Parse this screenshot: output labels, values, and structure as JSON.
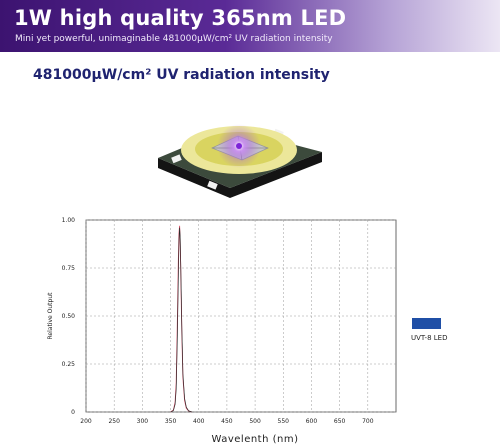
{
  "banner": {
    "title": "1W high quality 365nm LED",
    "subtitle": "Mini yet powerful, unimaginable 481000μW/cm² UV radiation intensity"
  },
  "headline": "481000μW/cm² UV radiation intensity",
  "colors": {
    "banner_start": "#3c1370",
    "banner_end": "#ece6f4",
    "headline": "#1f2370",
    "series_primary": "#e0506a",
    "series_secondary": "#2a2a2a",
    "legend": "#1f4fa6"
  },
  "chart_data": {
    "type": "line",
    "xlabel": "Wavelenth (nm)",
    "ylabel": "Relative Output",
    "xlim": [
      200,
      750
    ],
    "ylim": [
      0,
      1.0
    ],
    "x_ticks": [
      200,
      250,
      300,
      350,
      400,
      450,
      500,
      550,
      600,
      650,
      700
    ],
    "x_tick_labels": [
      "200",
      "250",
      "300",
      "350",
      "400",
      "450",
      "500",
      "550",
      "600",
      "650",
      "700"
    ],
    "y_ticks": [
      0,
      0.25,
      0.5,
      0.75,
      1.0
    ],
    "y_tick_labels": [
      "0",
      "0.25",
      "0.50",
      "0.75",
      "1.00"
    ],
    "grid": true,
    "legend_position": "right",
    "series": [
      {
        "name": "UVT-8 LED",
        "x": [
          350,
          355,
          358,
          360,
          362,
          364,
          365,
          366,
          367,
          368,
          370,
          372,
          375,
          378,
          382,
          388
        ],
        "values": [
          0.0,
          0.01,
          0.05,
          0.15,
          0.45,
          0.8,
          0.93,
          0.97,
          0.9,
          0.75,
          0.42,
          0.18,
          0.06,
          0.02,
          0.005,
          0.0
        ]
      },
      {
        "name": "",
        "x": [
          350,
          355,
          358,
          360,
          362,
          364,
          365,
          366,
          367,
          368,
          370,
          372,
          375,
          378,
          382,
          388
        ],
        "values": [
          0.0,
          0.008,
          0.04,
          0.12,
          0.38,
          0.72,
          0.9,
          0.96,
          0.92,
          0.78,
          0.45,
          0.2,
          0.07,
          0.025,
          0.006,
          0.0
        ]
      }
    ]
  }
}
